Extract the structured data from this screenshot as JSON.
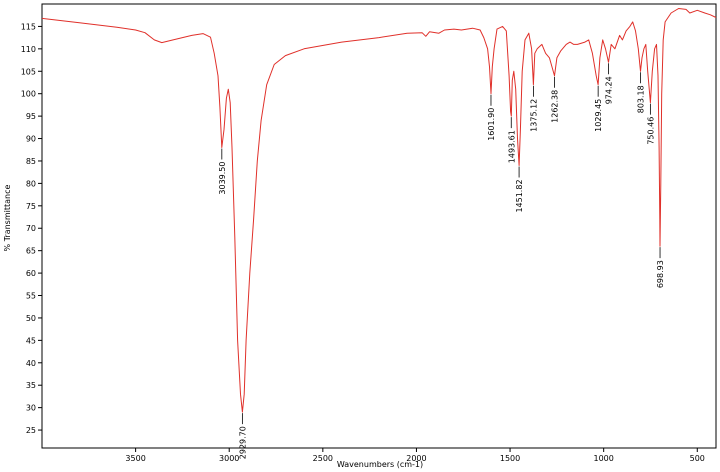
{
  "chart_data": {
    "type": "line",
    "xlabel": "Wavenumbers (cm-1)",
    "ylabel": "% Transmittance",
    "xlim": [
      4000,
      400
    ],
    "x_reversed": true,
    "ylim": [
      21,
      120
    ],
    "xticks": [
      3500,
      3000,
      2500,
      2000,
      1500,
      1000,
      500
    ],
    "yticks": [
      25,
      30,
      35,
      40,
      45,
      50,
      55,
      60,
      65,
      70,
      75,
      80,
      85,
      90,
      95,
      100,
      105,
      110,
      115
    ],
    "grid": false,
    "line_color": "#e0302a",
    "series": [
      {
        "points": [
          [
            4000,
            116.8
          ],
          [
            3800,
            115.8
          ],
          [
            3600,
            114.8
          ],
          [
            3500,
            114.2
          ],
          [
            3450,
            113.6
          ],
          [
            3400,
            112.0
          ],
          [
            3360,
            111.4
          ],
          [
            3300,
            112.0
          ],
          [
            3200,
            113.0
          ],
          [
            3140,
            113.4
          ],
          [
            3100,
            112.6
          ],
          [
            3080,
            109.0
          ],
          [
            3060,
            104.0
          ],
          [
            3050,
            97.0
          ],
          [
            3039.5,
            88.0
          ],
          [
            3028,
            92.0
          ],
          [
            3015,
            99.0
          ],
          [
            3005,
            101.0
          ],
          [
            2995,
            98.0
          ],
          [
            2985,
            88.0
          ],
          [
            2970,
            68.0
          ],
          [
            2955,
            45.0
          ],
          [
            2940,
            33.0
          ],
          [
            2929.7,
            29.0
          ],
          [
            2920,
            33.0
          ],
          [
            2910,
            45.0
          ],
          [
            2890,
            60.0
          ],
          [
            2870,
            72.0
          ],
          [
            2850,
            85.0
          ],
          [
            2830,
            94.0
          ],
          [
            2800,
            102.0
          ],
          [
            2760,
            106.5
          ],
          [
            2700,
            108.5
          ],
          [
            2600,
            110.0
          ],
          [
            2400,
            111.5
          ],
          [
            2200,
            112.5
          ],
          [
            2050,
            113.5
          ],
          [
            1970,
            113.6
          ],
          [
            1950,
            112.8
          ],
          [
            1930,
            113.8
          ],
          [
            1880,
            113.5
          ],
          [
            1850,
            114.2
          ],
          [
            1800,
            114.4
          ],
          [
            1760,
            114.2
          ],
          [
            1700,
            114.6
          ],
          [
            1660,
            114.2
          ],
          [
            1640,
            112.5
          ],
          [
            1620,
            110.0
          ],
          [
            1610,
            106.0
          ],
          [
            1601.9,
            100.0
          ],
          [
            1595,
            106.0
          ],
          [
            1585,
            110.0
          ],
          [
            1570,
            114.4
          ],
          [
            1540,
            115.0
          ],
          [
            1520,
            114.0
          ],
          [
            1505,
            104.0
          ],
          [
            1497,
            96.0
          ],
          [
            1493.6,
            95.0
          ],
          [
            1488,
            103.0
          ],
          [
            1480,
            105.0
          ],
          [
            1470,
            101.0
          ],
          [
            1460,
            90.0
          ],
          [
            1451.8,
            84.0
          ],
          [
            1445,
            92.0
          ],
          [
            1435,
            105.0
          ],
          [
            1420,
            112.0
          ],
          [
            1400,
            113.5
          ],
          [
            1385,
            110.0
          ],
          [
            1375.1,
            102.0
          ],
          [
            1368,
            109.0
          ],
          [
            1355,
            110.0
          ],
          [
            1330,
            111.0
          ],
          [
            1310,
            109.0
          ],
          [
            1290,
            108.0
          ],
          [
            1262.4,
            104.0
          ],
          [
            1250,
            108.0
          ],
          [
            1230,
            109.5
          ],
          [
            1200,
            111.0
          ],
          [
            1180,
            111.5
          ],
          [
            1160,
            111.0
          ],
          [
            1140,
            111.0
          ],
          [
            1100,
            111.5
          ],
          [
            1080,
            112.0
          ],
          [
            1060,
            109.0
          ],
          [
            1040,
            104.0
          ],
          [
            1029.5,
            102.0
          ],
          [
            1020,
            108.0
          ],
          [
            1005,
            112.0
          ],
          [
            990,
            110.0
          ],
          [
            974.2,
            107.0
          ],
          [
            960,
            111.0
          ],
          [
            940,
            110.0
          ],
          [
            915,
            113.0
          ],
          [
            900,
            112.0
          ],
          [
            880,
            114.0
          ],
          [
            860,
            115.0
          ],
          [
            845,
            116.0
          ],
          [
            830,
            114.0
          ],
          [
            815,
            110.0
          ],
          [
            803.2,
            105.0
          ],
          [
            795,
            108.0
          ],
          [
            785,
            110.0
          ],
          [
            775,
            111.0
          ],
          [
            765,
            105.0
          ],
          [
            750.5,
            98.0
          ],
          [
            740,
            105.0
          ],
          [
            728,
            110.0
          ],
          [
            718,
            111.0
          ],
          [
            710,
            104.0
          ],
          [
            704,
            88.0
          ],
          [
            700,
            72.0
          ],
          [
            698.9,
            66.0
          ],
          [
            695,
            80.0
          ],
          [
            690,
            100.0
          ],
          [
            682,
            112.0
          ],
          [
            672,
            116.0
          ],
          [
            640,
            118.0
          ],
          [
            600,
            119.0
          ],
          [
            560,
            118.8
          ],
          [
            540,
            118.0
          ],
          [
            500,
            118.6
          ],
          [
            460,
            118.0
          ],
          [
            430,
            117.6
          ],
          [
            400,
            117.0
          ]
        ]
      }
    ],
    "peak_labels": [
      {
        "x": 3039.5,
        "y": 88.0,
        "text": "3039.50"
      },
      {
        "x": 2929.7,
        "y": 29.0,
        "text": "2929.70"
      },
      {
        "x": 1601.9,
        "y": 100.0,
        "text": "1601.90"
      },
      {
        "x": 1493.6,
        "y": 95.0,
        "text": "1493.61"
      },
      {
        "x": 1451.8,
        "y": 84.0,
        "text": "1451.82"
      },
      {
        "x": 1375.1,
        "y": 102.0,
        "text": "1375.12"
      },
      {
        "x": 1262.4,
        "y": 104.0,
        "text": "1262.38"
      },
      {
        "x": 1029.5,
        "y": 102.0,
        "text": "1029.45"
      },
      {
        "x": 974.2,
        "y": 107.0,
        "text": "974.24"
      },
      {
        "x": 803.2,
        "y": 105.0,
        "text": "803.18"
      },
      {
        "x": 750.5,
        "y": 98.0,
        "text": "750.46"
      },
      {
        "x": 698.9,
        "y": 66.0,
        "text": "698.93"
      }
    ]
  }
}
